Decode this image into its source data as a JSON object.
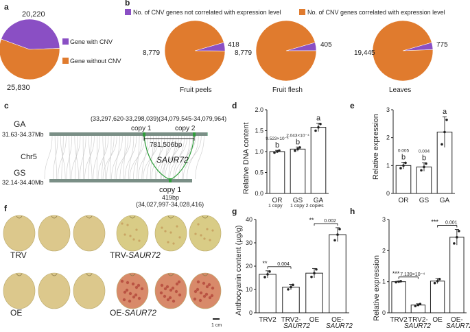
{
  "panels": {
    "a": {
      "letter": "a",
      "top_value": "20,220",
      "bottom_value": "25,830",
      "legend": [
        {
          "label": "Gene with CNV",
          "color": "#8a4fc4"
        },
        {
          "label": "Gene without CNV",
          "color": "#e07b2e"
        }
      ]
    },
    "b": {
      "letter": "b",
      "legend": [
        {
          "label": "No. of CNV genes not correlated with expression level",
          "color": "#8a4fc4"
        },
        {
          "label": "No. of CNV genes correlated with expression level",
          "color": "#e07b2e"
        }
      ],
      "pies": [
        {
          "caption": "Fruit peels",
          "big": "8,779",
          "small": "418"
        },
        {
          "caption": "Fruit flesh",
          "big": "8,779",
          "small": "405"
        },
        {
          "caption": "Leaves",
          "big": "19,445",
          "small": "775"
        }
      ]
    },
    "c": {
      "letter": "c",
      "ga_label": "GA",
      "ga_range": "31.63-34.37Mb",
      "chr_label": "Chr5",
      "gs_label": "GS",
      "gs_range": "32.14-34.40Mb",
      "coord_top": "(33,297,620-33,298,039)(34,079,545-34,079,964)",
      "copy1_top": "copy 1",
      "copy2_top": "copy 2",
      "distance": "781,506bp",
      "gene": "SAUR72",
      "copy1_bottom": "copy 1",
      "size_bottom": "419bp",
      "coord_bottom": "(34,027,997-34,028,416)"
    },
    "f": {
      "letter": "f",
      "trv": "TRV",
      "trv_saur_prefix": "TRV-",
      "oe": "OE",
      "oe_saur_prefix": "OE-",
      "saur": "SAUR72",
      "scale": "1 cm"
    },
    "d": {
      "letter": "d",
      "ylabel": "Relative DNA content",
      "sub_or": "1 copy",
      "sub_gs": "1 copy 2 copies"
    },
    "e": {
      "letter": "e",
      "ylabel": "Relative expression"
    },
    "g": {
      "letter": "g",
      "ylabel": "Anthocyanin content (µg/g)",
      "cat2_line2": "SAUR72",
      "cat4_line2": "SAUR72"
    },
    "h": {
      "letter": "h",
      "ylabel": "Relative expression",
      "cat2_line2": "SAUR72",
      "cat4_line2": "SAUR72"
    }
  },
  "chart_data": [
    {
      "type": "pie",
      "title": "",
      "values": [
        20220,
        25830
      ],
      "labels": [
        "Gene with CNV",
        "Gene without CNV"
      ]
    },
    {
      "type": "pie",
      "title": "Fruit peels",
      "values": [
        8779,
        418
      ]
    },
    {
      "type": "pie",
      "title": "Fruit flesh",
      "values": [
        8779,
        405
      ]
    },
    {
      "type": "pie",
      "title": "Leaves",
      "values": [
        19445,
        775
      ]
    },
    {
      "type": "bar",
      "ylabel": "Relative DNA content",
      "categories": [
        "OR",
        "GS",
        "GA"
      ],
      "values": [
        1.0,
        1.06,
        1.58
      ],
      "errors": [
        0.03,
        0.05,
        0.1
      ],
      "ylim": [
        0,
        2
      ],
      "yticks": [
        0,
        0.5,
        1.0,
        1.5,
        2.0
      ],
      "letters": [
        "b",
        "b",
        "a"
      ],
      "pvalues": [
        "9.523×10⁻⁵",
        "2.043×10⁻⁴",
        ""
      ]
    },
    {
      "type": "bar",
      "ylabel": "Relative expression",
      "categories": [
        "OR",
        "GS",
        "GA"
      ],
      "values": [
        1.0,
        0.95,
        2.2
      ],
      "errors": [
        0.12,
        0.15,
        0.55
      ],
      "ylim": [
        0,
        3
      ],
      "yticks": [
        0,
        1,
        2,
        3
      ],
      "letters": [
        "b",
        "b",
        "a"
      ],
      "pvalues": [
        "0.005",
        "0.004",
        ""
      ]
    },
    {
      "type": "bar",
      "ylabel": "Anthocyanin content (µg/g)",
      "categories": [
        "TRV2",
        "TRV2-",
        "OE",
        "OE-"
      ],
      "values": [
        16.5,
        11,
        17,
        33.5
      ],
      "errors": [
        1.5,
        1.2,
        2,
        3
      ],
      "ylim": [
        0,
        40
      ],
      "yticks": [
        0,
        10,
        20,
        30,
        40
      ],
      "annotations": [
        {
          "stars": "**",
          "p": "0.004"
        },
        {
          "stars": "**",
          "p": "0.002"
        }
      ]
    },
    {
      "type": "bar",
      "ylabel": "Relative expression",
      "categories": [
        "TRV2",
        "TRV2-",
        "OE",
        "OE-"
      ],
      "values": [
        1.0,
        0.25,
        1.02,
        2.43
      ],
      "errors": [
        0.02,
        0.04,
        0.08,
        0.25
      ],
      "ylim": [
        0,
        3
      ],
      "yticks": [
        0,
        1,
        2,
        3
      ],
      "annotations": [
        {
          "stars": "***",
          "p": "7.139×10⁻⁴"
        },
        {
          "stars": "***",
          "p": "0.001"
        }
      ]
    }
  ]
}
